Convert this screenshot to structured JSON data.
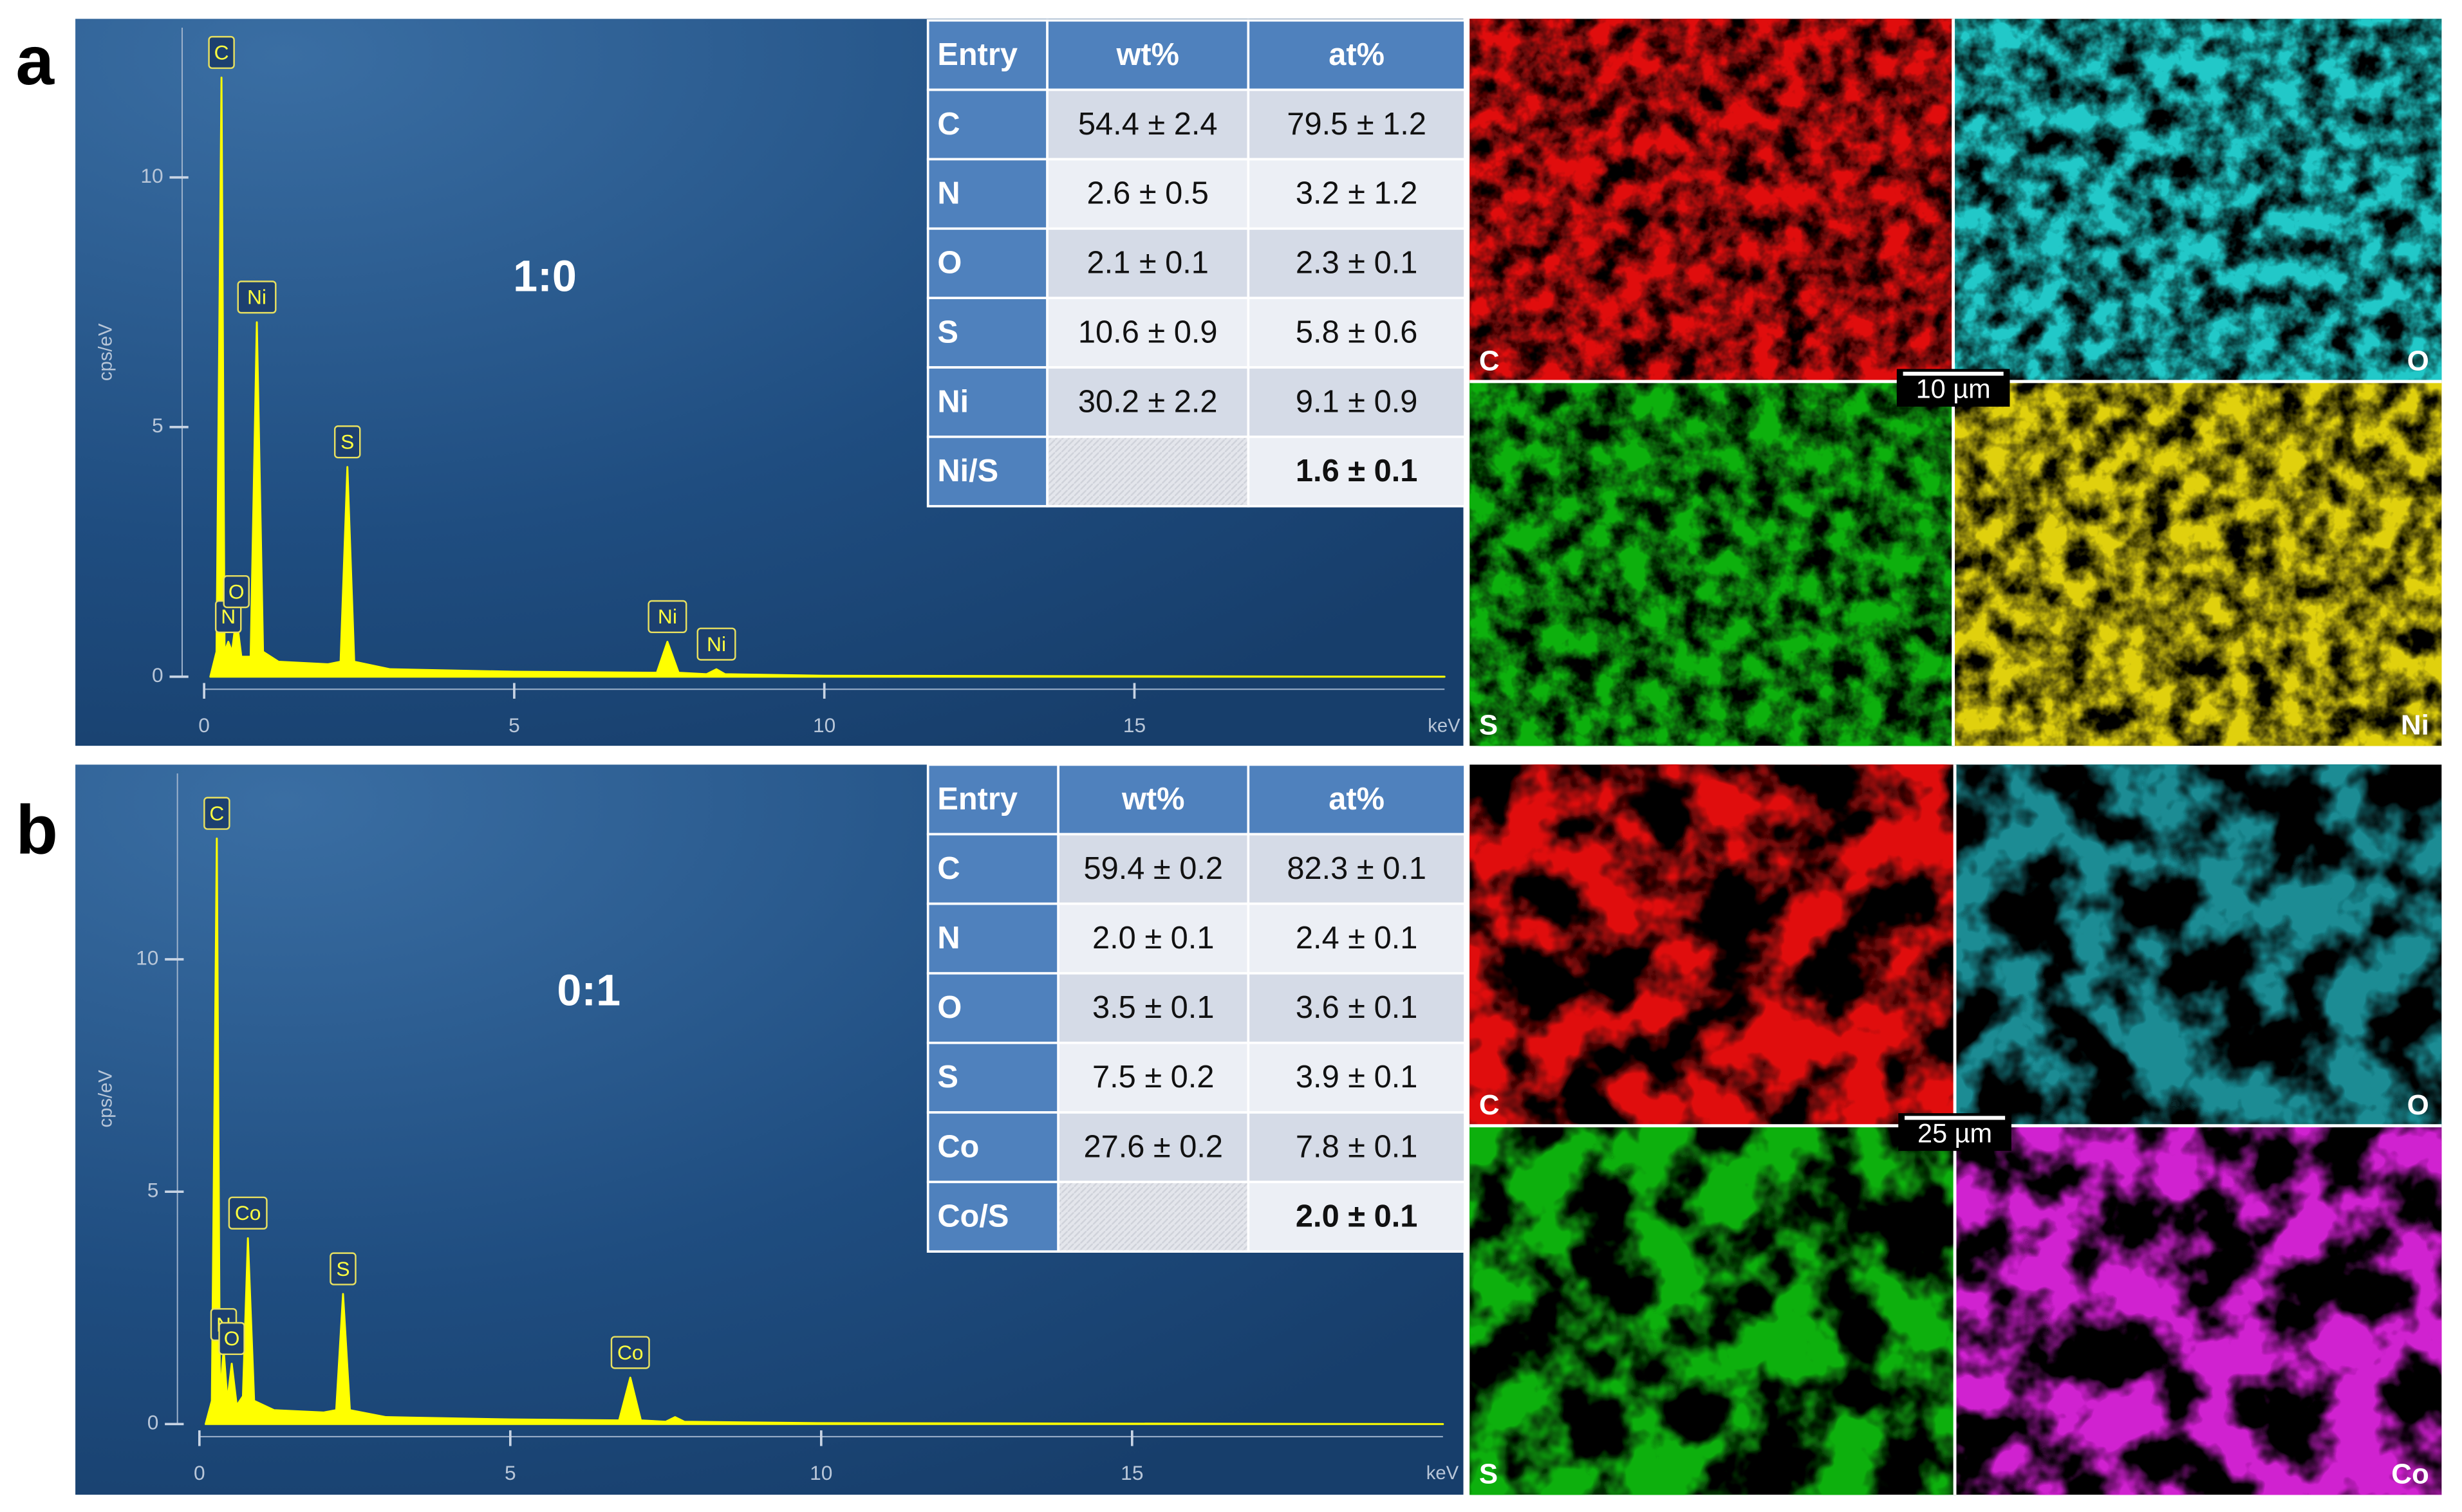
{
  "chart_data": [
    {
      "type": "line",
      "annotation": "1:0",
      "x_label": "keV",
      "y_label": "cps/eV",
      "color": "#ffff00",
      "x": [
        0.1,
        0.2,
        0.28,
        0.33,
        0.39,
        0.45,
        0.52,
        0.6,
        0.75,
        0.85,
        0.95,
        1.2,
        2.0,
        2.2,
        2.31,
        2.42,
        3,
        5,
        7.3,
        7.47,
        7.65,
        8.1,
        8.26,
        8.4,
        10,
        20
      ],
      "values": [
        0,
        0.5,
        12,
        0.5,
        0.7,
        0.5,
        1.2,
        0.4,
        0.4,
        7.1,
        0.5,
        0.3,
        0.25,
        0.3,
        4.2,
        0.3,
        0.15,
        0.1,
        0.08,
        0.7,
        0.08,
        0.05,
        0.15,
        0.05,
        0.02,
        0
      ],
      "point_labels": [
        null,
        null,
        "C",
        null,
        "N",
        null,
        "O",
        null,
        null,
        "Ni",
        null,
        null,
        null,
        null,
        "S",
        null,
        null,
        null,
        null,
        "Ni",
        null,
        null,
        "Ni",
        null,
        null,
        null
      ],
      "xlim": [
        0,
        20
      ],
      "ylim": [
        0,
        13
      ],
      "xticks": [
        0,
        5,
        10,
        15
      ],
      "yticks": [
        0,
        5,
        10
      ]
    },
    {
      "type": "line",
      "annotation": "0:1",
      "x_label": "keV",
      "y_label": "cps/eV",
      "color": "#ffff00",
      "x": [
        0.1,
        0.2,
        0.28,
        0.33,
        0.39,
        0.45,
        0.52,
        0.6,
        0.7,
        0.78,
        0.88,
        1.2,
        2.0,
        2.2,
        2.31,
        2.42,
        3,
        5,
        6.75,
        6.93,
        7.1,
        7.5,
        7.65,
        7.8,
        10,
        20
      ],
      "values": [
        0,
        0.5,
        12.6,
        0.6,
        1.6,
        0.5,
        1.3,
        0.4,
        0.6,
        4.0,
        0.5,
        0.3,
        0.25,
        0.3,
        2.8,
        0.3,
        0.15,
        0.1,
        0.08,
        1.0,
        0.08,
        0.05,
        0.15,
        0.05,
        0.02,
        0
      ],
      "point_labels": [
        null,
        null,
        "C",
        null,
        "N",
        null,
        "O",
        null,
        null,
        "Co",
        null,
        null,
        null,
        null,
        "S",
        null,
        null,
        null,
        null,
        "Co",
        null,
        null,
        null,
        null,
        null,
        null
      ],
      "xlim": [
        0,
        20
      ],
      "ylim": [
        0,
        14
      ],
      "xticks": [
        0,
        5,
        10,
        15
      ],
      "yticks": [
        0,
        5,
        10
      ]
    }
  ],
  "panels": [
    {
      "label": "a",
      "table": {
        "header": [
          "Entry",
          "wt%",
          "at%"
        ],
        "rows": [
          [
            "C",
            "54.4 ± 2.4",
            "79.5 ± 1.2"
          ],
          [
            "N",
            "2.6 ± 0.5",
            "3.2 ± 1.2"
          ],
          [
            "O",
            "2.1 ± 0.1",
            "2.3 ± 0.1"
          ],
          [
            "S",
            "10.6 ± 0.9",
            "5.8 ± 0.6"
          ],
          [
            "Ni",
            "30.2 ± 2.2",
            "9.1 ± 0.9"
          ],
          [
            "Ni/S",
            null,
            "1.6 ± 0.1"
          ]
        ]
      },
      "maps": [
        {
          "label": "C",
          "color": "#e01010"
        },
        {
          "label": "O",
          "color": "#20c8c8"
        },
        {
          "label": "S",
          "color": "#10b010"
        },
        {
          "label": "Ni",
          "color": "#e0d010"
        }
      ],
      "scale_bar": "10 µm"
    },
    {
      "label": "b",
      "table": {
        "header": [
          "Entry",
          "wt%",
          "at%"
        ],
        "rows": [
          [
            "C",
            "59.4 ± 0.2",
            "82.3 ± 0.1"
          ],
          [
            "N",
            "2.0 ± 0.1",
            "2.4 ± 0.1"
          ],
          [
            "O",
            "3.5 ± 0.1",
            "3.6 ± 0.1"
          ],
          [
            "S",
            "7.5 ± 0.2",
            "3.9 ± 0.1"
          ],
          [
            "Co",
            "27.6 ± 0.2",
            "7.8 ± 0.1"
          ],
          [
            "Co/S",
            null,
            "2.0 ± 0.1"
          ]
        ]
      },
      "maps": [
        {
          "label": "C",
          "color": "#e01010"
        },
        {
          "label": "O",
          "color": "#1a8c94"
        },
        {
          "label": "S",
          "color": "#10b010"
        },
        {
          "label": "Co",
          "color": "#d020d0"
        }
      ],
      "scale_bar": "25 µm"
    }
  ]
}
